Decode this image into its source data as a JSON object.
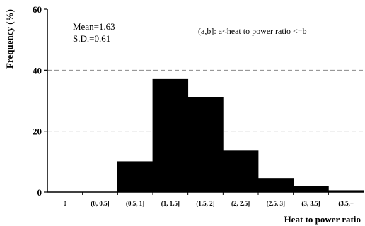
{
  "chart_data": {
    "type": "bar",
    "title": "",
    "xlabel": "Heat to power ratio",
    "ylabel": "Frequency (%)",
    "ylim": [
      0,
      60
    ],
    "yticks": [
      0,
      20,
      40,
      60
    ],
    "grid": "dashed horizontal at 20 and 40",
    "categories": [
      "0",
      "(0, 0.5]",
      "(0.5, 1]",
      "(1, 1.5]",
      "(1.5, 2]",
      "(2, 2.5]",
      "(2.5, 3]",
      "(3, 3.5]",
      "(3.5,+"
    ],
    "values": [
      0,
      0,
      10,
      37,
      31,
      13.5,
      4.5,
      1.8,
      0.5
    ],
    "bar_color": "#000000",
    "annotations": {
      "mean": "Mean=1.63",
      "sd": "S.D.=0.61",
      "note": "(a,b]: a<heat to power ratio <=b"
    }
  }
}
